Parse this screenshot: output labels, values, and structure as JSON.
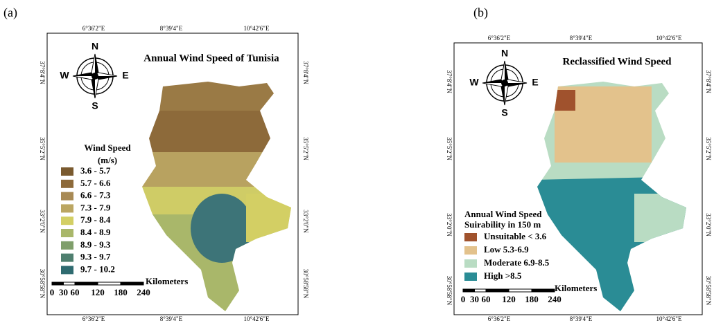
{
  "panels": [
    {
      "label": "(a)",
      "title": "Annual Wind Speed of Tunisia",
      "lon_ticks": [
        "6°36'2\"E",
        "8°39'4\"E",
        "10°42'6\"E"
      ],
      "lat_ticks": [
        "37°8'4\"N",
        "35°5'2\"N",
        "33°2'0\"N",
        "30°58'58\"N"
      ],
      "compass": {
        "north": "N",
        "east": "E",
        "south": "S",
        "west": "W"
      },
      "legend": {
        "title": "Wind Speed",
        "subtitle": "(m/s)",
        "items": [
          {
            "label": "3.6 - 5.7",
            "color": "#7a5a2f"
          },
          {
            "label": "5.7 - 6.6",
            "color": "#8d6a3a"
          },
          {
            "label": "6.6 - 7.3",
            "color": "#a88a55"
          },
          {
            "label": "7.3 - 7.9",
            "color": "#bba662"
          },
          {
            "label": "7.9 - 8.4",
            "color": "#d3cf64"
          },
          {
            "label": "8.4 - 8.9",
            "color": "#a9b76a"
          },
          {
            "label": "8.9 - 9.3",
            "color": "#7f9f6b"
          },
          {
            "label": "9.3 - 9.7",
            "color": "#4f7f6f"
          },
          {
            "label": "9.7 - 10.2",
            "color": "#2f6b70"
          }
        ]
      },
      "scale": {
        "labels": [
          "0",
          "30",
          "60",
          "120",
          "180",
          "240"
        ],
        "unit": "Kilometers"
      }
    },
    {
      "label": "(b)",
      "title": "Reclassified Wind Speed",
      "lon_ticks": [
        "6°36'2\"E",
        "8°39'4\"E",
        "10°42'6\"E"
      ],
      "lat_ticks": [
        "37°8'4\"N",
        "35°5'2\"N",
        "33°2'0\"N",
        "30°58'58\"N"
      ],
      "compass": {
        "north": "N",
        "east": "E",
        "south": "S",
        "west": "W"
      },
      "legend": {
        "title": "Annual Wind Speed",
        "subtitle": "Suirability in 150 m",
        "items": [
          {
            "label": "Unsuitable < 3.6",
            "color": "#a0522d"
          },
          {
            "label": "Low  5.3-6.9",
            "color": "#e3c28c"
          },
          {
            "label": "Moderate  6.9-8.5",
            "color": "#b9dcc3"
          },
          {
            "label": "High  >8.5",
            "color": "#2a8c95"
          }
        ]
      },
      "scale": {
        "labels": [
          "0",
          "30",
          "60",
          "120",
          "180",
          "240"
        ],
        "unit": "Kilometers"
      }
    }
  ]
}
